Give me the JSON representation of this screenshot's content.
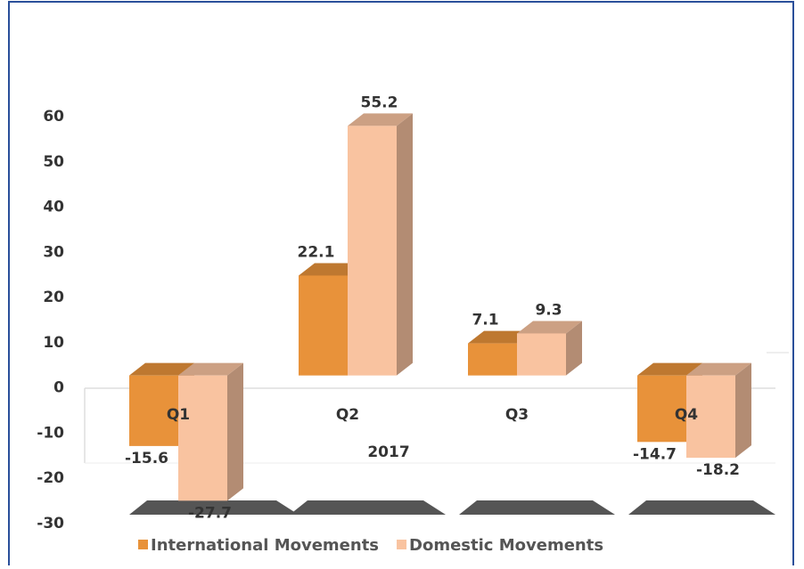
{
  "chart_data": {
    "type": "bar3d",
    "categories": [
      "Q1",
      "Q2",
      "Q3",
      "Q4"
    ],
    "xlabel": "2017",
    "series": [
      {
        "name": "International Movements",
        "color": "#e8923a",
        "values": [
          -15.6,
          22.1,
          7.1,
          -14.7
        ]
      },
      {
        "name": "Domestic Movements",
        "color": "#f9c3a0",
        "values": [
          -27.7,
          55.2,
          9.3,
          -18.2
        ]
      }
    ],
    "ylim": [
      -30,
      60
    ],
    "yticks": [
      -30,
      -20,
      -10,
      0,
      10,
      20,
      30,
      40,
      50,
      60
    ]
  }
}
